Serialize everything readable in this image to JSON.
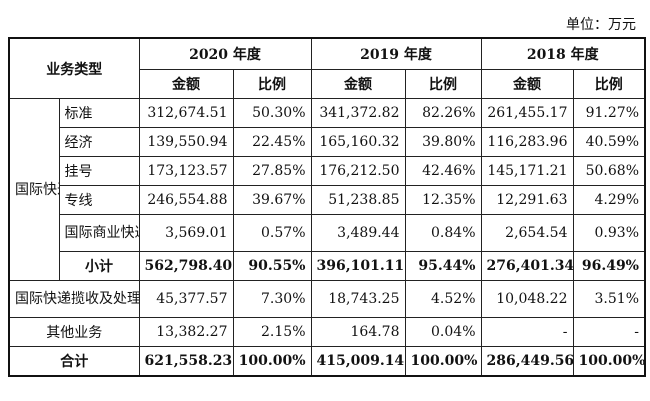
{
  "unit_label": "单位：万元",
  "header": {
    "business_type": "业务类型",
    "years": [
      "2020 年度",
      "2019 年度",
      "2018 年度"
    ],
    "amount": "金额",
    "ratio": "比例"
  },
  "group_label": "国际快递全程业务",
  "rows": [
    {
      "name": "标准",
      "values": [
        "312,674.51",
        "50.30%",
        "341,372.82",
        "82.26%",
        "261,455.17",
        "91.27%"
      ]
    },
    {
      "name": "经济",
      "values": [
        "139,550.94",
        "22.45%",
        "165,160.32",
        "39.80%",
        "116,283.96",
        "40.59%"
      ]
    },
    {
      "name": "挂号",
      "values": [
        "173,123.57",
        "27.85%",
        "176,212.50",
        "42.46%",
        "145,171.21",
        "50.68%"
      ]
    },
    {
      "name": "专线",
      "values": [
        "246,554.88",
        "39.67%",
        "51,238.85",
        "12.35%",
        "12,291.63",
        "4.29%"
      ]
    },
    {
      "name": "国际商业快递",
      "values": [
        "3,569.01",
        "0.57%",
        "3,489.44",
        "0.84%",
        "2,654.54",
        "0.93%"
      ]
    }
  ],
  "subtotal": {
    "name": "小计",
    "values": [
      "562,798.40",
      "90.55%",
      "396,101.11",
      "95.44%",
      "276,401.34",
      "96.49%"
    ]
  },
  "collection": {
    "name": "国际快递揽收及处理业务",
    "values": [
      "45,377.57",
      "7.30%",
      "18,743.25",
      "4.52%",
      "10,048.22",
      "3.51%"
    ]
  },
  "other": {
    "name": "其他业务",
    "values": [
      "13,382.27",
      "2.15%",
      "164.78",
      "0.04%",
      "-",
      "-"
    ]
  },
  "total": {
    "name": "合计",
    "values": [
      "621,558.23",
      "100.00%",
      "415,009.14",
      "100.00%",
      "286,449.56",
      "100.00%"
    ]
  }
}
